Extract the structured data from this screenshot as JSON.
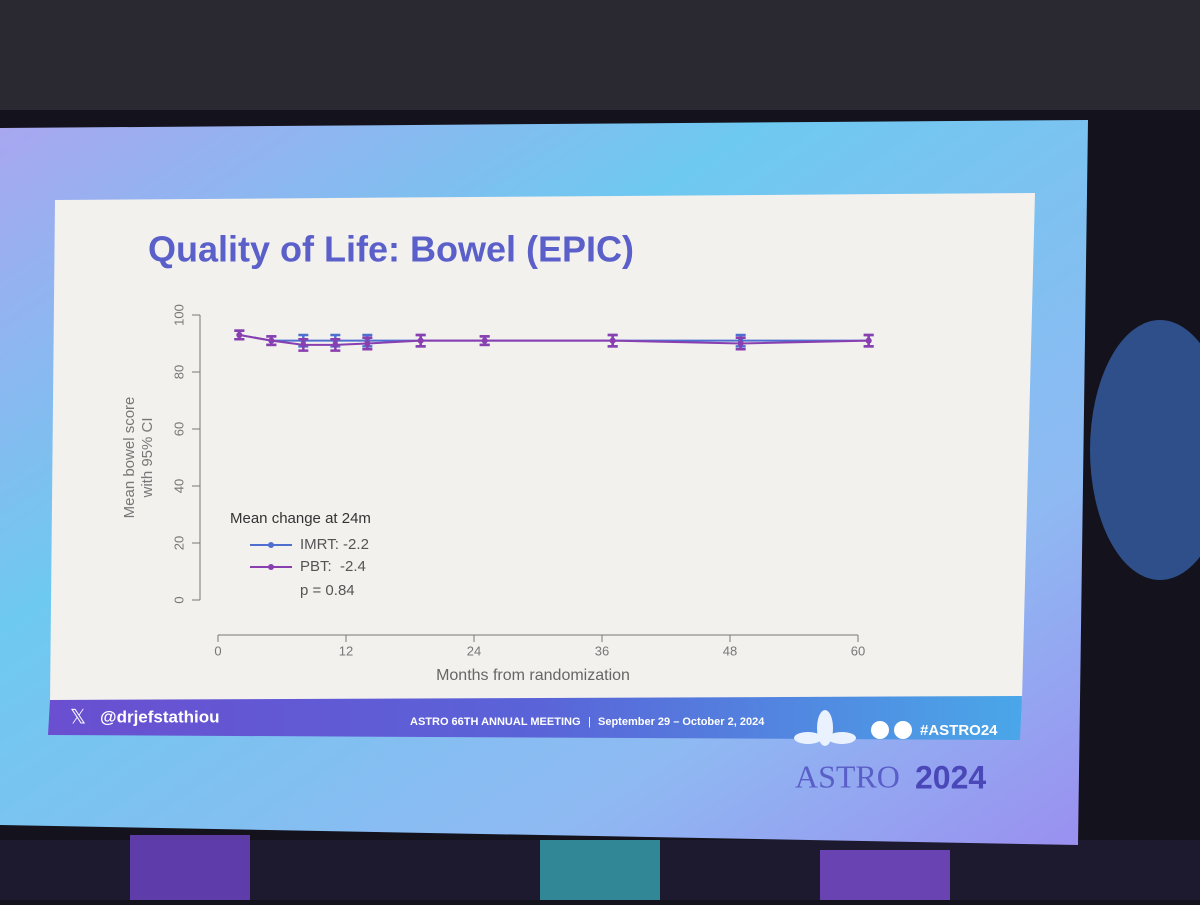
{
  "chart_data": {
    "type": "line",
    "title": "Quality of Life: Bowel (EPIC)",
    "y_label": [
      "Mean bowel score",
      "with 95% CI"
    ],
    "x_label": "Months from randomization",
    "x": [
      2,
      5,
      8,
      11,
      14,
      19,
      25,
      37,
      49,
      61
    ],
    "series": [
      {
        "name": "IMRT: -2.2",
        "color": "#4f6fd0",
        "values": [
          93,
          91,
          91,
          91,
          91,
          91,
          91,
          91,
          91,
          91
        ],
        "errors": [
          1.5,
          1.5,
          2,
          2,
          2,
          2,
          1.5,
          2,
          2,
          2
        ]
      },
      {
        "name": "PBT:  -2.4",
        "color": "#8a3fb0",
        "values": [
          93,
          91,
          89.5,
          89.5,
          90,
          91,
          91,
          91,
          90,
          91
        ],
        "errors": [
          1.5,
          1.5,
          2,
          2,
          2,
          2,
          1.5,
          2,
          2,
          2
        ]
      }
    ],
    "legend_title": "Mean change at 24m",
    "annotation": "p = 0.84",
    "xlim": [
      0,
      60
    ],
    "xticks": [
      0,
      12,
      24,
      36,
      48,
      60
    ],
    "ylim": [
      0,
      100
    ],
    "yticks": [
      0,
      20,
      40,
      60,
      80,
      100
    ],
    "legend_position": "lower-left",
    "footer": {
      "handle": "@drjefstathiou",
      "meeting": "ASTRO 66TH ANNUAL MEETING",
      "dates": "September 29 – October 2, 2024",
      "hashtag": "#ASTRO24",
      "logo": "ASTRO",
      "year": "2024"
    }
  }
}
